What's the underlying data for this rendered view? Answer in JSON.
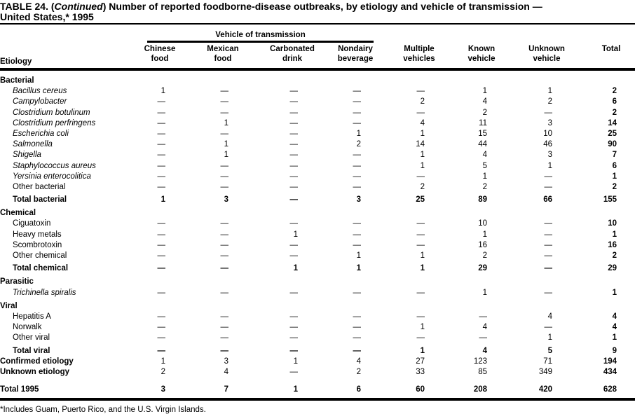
{
  "title": {
    "part1": "TABLE 24. (",
    "continued": "Continued",
    "part2": ") Number of reported foodborne-disease outbreaks, by etiology and vehicle of transmission —",
    "line2": "United States,* 1995"
  },
  "table": {
    "span_header": "Vehicle of transmission",
    "etiology_header": "Etiology",
    "columns": [
      {
        "line1": "Chinese",
        "line2": "food"
      },
      {
        "line1": "Mexican",
        "line2": "food"
      },
      {
        "line1": "Carbonated",
        "line2": "drink"
      },
      {
        "line1": "Nondairy",
        "line2": "beverage"
      },
      {
        "line1": "Multiple",
        "line2": "vehicles"
      },
      {
        "line1": "Known",
        "line2": "vehicle"
      },
      {
        "line1": "Unknown",
        "line2": "vehicle"
      },
      {
        "line1": "",
        "line2": "Total"
      }
    ],
    "rows": [
      {
        "type": "section",
        "label": "Bacterial"
      },
      {
        "type": "species",
        "label": "Bacillus cereus",
        "values": [
          "1",
          "—",
          "—",
          "—",
          "—",
          "1",
          "1",
          "2"
        ]
      },
      {
        "type": "species",
        "label": "Campylobacter",
        "values": [
          "—",
          "—",
          "—",
          "—",
          "2",
          "4",
          "2",
          "6"
        ]
      },
      {
        "type": "species",
        "label": "Clostridium botulinum",
        "values": [
          "—",
          "—",
          "—",
          "—",
          "—",
          "2",
          "—",
          "2"
        ]
      },
      {
        "type": "species",
        "label": "Clostridium perfringens",
        "values": [
          "—",
          "1",
          "—",
          "—",
          "4",
          "11",
          "3",
          "14"
        ]
      },
      {
        "type": "species",
        "label": "Escherichia coli",
        "values": [
          "—",
          "—",
          "—",
          "1",
          "1",
          "15",
          "10",
          "25"
        ]
      },
      {
        "type": "species",
        "label": "Salmonella",
        "values": [
          "—",
          "1",
          "—",
          "2",
          "14",
          "44",
          "46",
          "90"
        ]
      },
      {
        "type": "species",
        "label": "Shigella",
        "values": [
          "—",
          "1",
          "—",
          "—",
          "1",
          "4",
          "3",
          "7"
        ]
      },
      {
        "type": "species",
        "label": "Staphylococcus aureus",
        "values": [
          "—",
          "—",
          "—",
          "—",
          "1",
          "5",
          "1",
          "6"
        ]
      },
      {
        "type": "species",
        "label": "Yersinia enterocolitica",
        "values": [
          "—",
          "—",
          "—",
          "—",
          "—",
          "1",
          "—",
          "1"
        ]
      },
      {
        "type": "item",
        "label": "Other bacterial",
        "values": [
          "—",
          "—",
          "—",
          "—",
          "2",
          "2",
          "—",
          "2"
        ]
      },
      {
        "type": "subtotal",
        "label": "Total bacterial",
        "values": [
          "1",
          "3",
          "—",
          "3",
          "25",
          "89",
          "66",
          "155"
        ]
      },
      {
        "type": "section",
        "label": "Chemical"
      },
      {
        "type": "item",
        "label": "Ciguatoxin",
        "values": [
          "—",
          "—",
          "—",
          "—",
          "—",
          "10",
          "—",
          "10"
        ]
      },
      {
        "type": "item",
        "label": "Heavy metals",
        "values": [
          "—",
          "—",
          "1",
          "—",
          "—",
          "1",
          "—",
          "1"
        ]
      },
      {
        "type": "item",
        "label": "Scombrotoxin",
        "values": [
          "—",
          "—",
          "—",
          "—",
          "—",
          "16",
          "—",
          "16"
        ]
      },
      {
        "type": "item",
        "label": "Other chemical",
        "values": [
          "—",
          "—",
          "—",
          "1",
          "1",
          "2",
          "—",
          "2"
        ]
      },
      {
        "type": "subtotal",
        "label": "Total chemical",
        "values": [
          "—",
          "—",
          "1",
          "1",
          "1",
          "29",
          "—",
          "29"
        ]
      },
      {
        "type": "section",
        "label": "Parasitic"
      },
      {
        "type": "species",
        "label": "Trichinella spiralis",
        "values": [
          "—",
          "—",
          "—",
          "—",
          "—",
          "1",
          "—",
          "1"
        ]
      },
      {
        "type": "section",
        "label": "Viral"
      },
      {
        "type": "item",
        "label": "Hepatitis A",
        "values": [
          "—",
          "—",
          "—",
          "—",
          "—",
          "—",
          "4",
          "4"
        ]
      },
      {
        "type": "item",
        "label": "Norwalk",
        "values": [
          "—",
          "—",
          "—",
          "—",
          "1",
          "4",
          "—",
          "4"
        ]
      },
      {
        "type": "item",
        "label": "Other viral",
        "values": [
          "—",
          "—",
          "—",
          "—",
          "—",
          "—",
          "1",
          "1"
        ]
      },
      {
        "type": "subtotal",
        "label": "Total viral",
        "values": [
          "—",
          "—",
          "—",
          "—",
          "1",
          "4",
          "5",
          "9"
        ]
      },
      {
        "type": "summary",
        "label": "Confirmed etiology",
        "values": [
          "1",
          "3",
          "1",
          "4",
          "27",
          "123",
          "71",
          "194"
        ]
      },
      {
        "type": "summary",
        "label": "Unknown etiology",
        "values": [
          "2",
          "4",
          "—",
          "2",
          "33",
          "85",
          "349",
          "434"
        ]
      },
      {
        "type": "grand",
        "label": "Total 1995",
        "values": [
          "3",
          "7",
          "1",
          "6",
          "60",
          "208",
          "420",
          "628"
        ]
      }
    ]
  },
  "footnote": "*Includes Guam, Puerto Rico, and the U.S. Virgin Islands.",
  "colors": {
    "text": "#000000",
    "background": "#ffffff",
    "rule": "#000000"
  }
}
